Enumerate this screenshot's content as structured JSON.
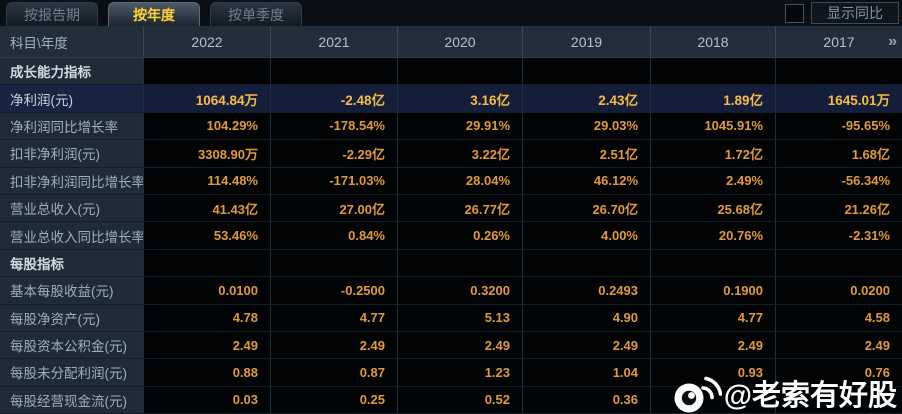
{
  "tabs": [
    {
      "label": "按报告期",
      "active": false
    },
    {
      "label": "按年度",
      "active": true
    },
    {
      "label": "按单季度",
      "active": false
    }
  ],
  "controls": {
    "show_yoy_label": "显示同比",
    "yoy_checkbox_checked": false
  },
  "table": {
    "corner_label": "科目\\年度",
    "years": [
      "2022",
      "2021",
      "2020",
      "2019",
      "2018",
      "2017"
    ],
    "more_icon": "»",
    "rows": [
      {
        "type": "section",
        "label": "成长能力指标",
        "values": [
          "",
          "",
          "",
          "",
          "",
          ""
        ]
      },
      {
        "type": "highlight",
        "label": "净利润(元)",
        "values": [
          "1064.84万",
          "-2.48亿",
          "3.16亿",
          "2.43亿",
          "1.89亿",
          "1645.01万"
        ]
      },
      {
        "type": "data",
        "label": "净利润同比增长率",
        "values": [
          "104.29%",
          "-178.54%",
          "29.91%",
          "29.03%",
          "1045.91%",
          "-95.65%"
        ]
      },
      {
        "type": "data",
        "label": "扣非净利润(元)",
        "values": [
          "3308.90万",
          "-2.29亿",
          "3.22亿",
          "2.51亿",
          "1.72亿",
          "1.68亿"
        ]
      },
      {
        "type": "data",
        "label": "扣非净利润同比增长率",
        "values": [
          "114.48%",
          "-171.03%",
          "28.04%",
          "46.12%",
          "2.49%",
          "-56.34%"
        ]
      },
      {
        "type": "data",
        "label": "营业总收入(元)",
        "values": [
          "41.43亿",
          "27.00亿",
          "26.77亿",
          "26.70亿",
          "25.68亿",
          "21.26亿"
        ]
      },
      {
        "type": "data",
        "label": "营业总收入同比增长率",
        "values": [
          "53.46%",
          "0.84%",
          "0.26%",
          "4.00%",
          "20.76%",
          "-2.31%"
        ]
      },
      {
        "type": "section",
        "label": "每股指标",
        "values": [
          "",
          "",
          "",
          "",
          "",
          ""
        ]
      },
      {
        "type": "data",
        "label": "基本每股收益(元)",
        "values": [
          "0.0100",
          "-0.2500",
          "0.3200",
          "0.2493",
          "0.1900",
          "0.0200"
        ]
      },
      {
        "type": "data",
        "label": "每股净资产(元)",
        "values": [
          "4.78",
          "4.77",
          "5.13",
          "4.90",
          "4.77",
          "4.58"
        ]
      },
      {
        "type": "data",
        "label": "每股资本公积金(元)",
        "values": [
          "2.49",
          "2.49",
          "2.49",
          "2.49",
          "2.49",
          "2.49"
        ]
      },
      {
        "type": "data",
        "label": "每股未分配利润(元)",
        "values": [
          "0.88",
          "0.87",
          "1.23",
          "1.04",
          "0.93",
          "0.76"
        ]
      },
      {
        "type": "data",
        "label": "每股经营现金流(元)",
        "values": [
          "0.03",
          "0.25",
          "0.52",
          "0.36",
          "",
          ""
        ]
      }
    ]
  },
  "watermark": {
    "text": "@老索有好股",
    "icon": "weibo-logo"
  },
  "colors": {
    "value_orange": "#e0993d",
    "highlight_value_orange": "#f6bc45",
    "active_tab_yellow": "#ffd22e",
    "highlight_row_bg": "#151f3c",
    "label_column_bg": "#1f2b36",
    "header_bg": "#222e3a",
    "data_cell_bg": "#020406"
  }
}
